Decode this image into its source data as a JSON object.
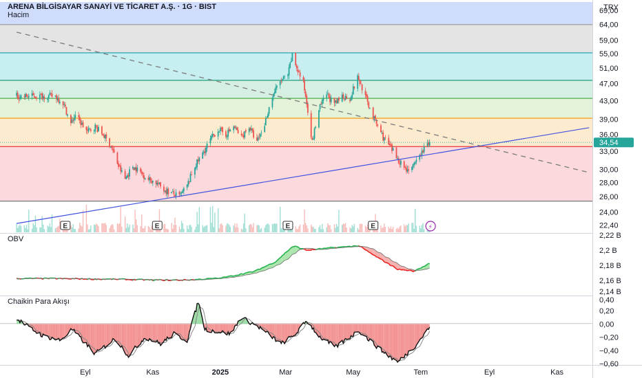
{
  "header": {
    "symbol": "ARENA BİLGİSAYAR SANAYİ VE TİCARET A.Ş. · 1G · BIST",
    "volume_label": "Hacim"
  },
  "currency": "TRY",
  "last_price": "34,54",
  "colors": {
    "up": "#26a69a",
    "down": "#ef5350",
    "trend_line": "#3f51e0",
    "dash_line": "#7a7a7a",
    "price_tag": "#26a69a",
    "obv_up": "#22b14c",
    "obv_down": "#e8231f",
    "chaikin": "#111111"
  },
  "x_axis": {
    "labels": [
      "Eyl",
      "Kas",
      "2025",
      "Mar",
      "May",
      "Tem",
      "Eyl",
      "Kas"
    ]
  },
  "panes": {
    "price": {
      "scale": "log",
      "ticks": [
        "69,00",
        "64,00",
        "59,00",
        "55,00",
        "51,00",
        "47,00",
        "43,00",
        "39,00",
        "36,00",
        "33,00",
        "30,00",
        "28,00",
        "26,00",
        "24,00",
        "22,40"
      ],
      "zones": [
        {
          "from": 64.0,
          "to": 72.0,
          "color": "#d0dcfb"
        },
        {
          "from": 55.2,
          "to": 64.0,
          "color": "#e4e4e4"
        },
        {
          "from": 47.8,
          "to": 55.2,
          "color": "#c7eef0"
        },
        {
          "from": 43.5,
          "to": 47.8,
          "color": "#d6efe3"
        },
        {
          "from": 39.2,
          "to": 43.5,
          "color": "#e3f2d9"
        },
        {
          "from": 33.8,
          "to": 39.2,
          "color": "#fdebd0"
        },
        {
          "from": 25.4,
          "to": 33.8,
          "color": "#fbd9dc"
        }
      ],
      "zone_lines": [
        {
          "value": 64.0,
          "color": "#9e9e9e"
        },
        {
          "value": 55.2,
          "color": "#26a6b0"
        },
        {
          "value": 47.8,
          "color": "#1f9e7a"
        },
        {
          "value": 43.5,
          "color": "#4caf50"
        },
        {
          "value": 39.2,
          "color": "#f39c12"
        },
        {
          "value": 33.8,
          "color": "#e53935"
        },
        {
          "value": 25.4,
          "color": "#777777"
        }
      ],
      "earnings_marker": "E",
      "dividend_marker": "⚡"
    },
    "obv": {
      "title": "OBV",
      "ticks": [
        "2,22 B",
        "2,2 B",
        "2,18 B",
        "2,16 B",
        "2,14 B"
      ]
    },
    "chaikin": {
      "title": "Chaikin Para Akışı",
      "ticks": [
        "0,40",
        "0,20",
        "0,00",
        "−0,20",
        "−0,40",
        "−0,60"
      ]
    }
  },
  "chart_data": [
    {
      "type": "candlestick",
      "title": "ARENA BİLGİSAYAR SANAYİ VE TİCARET A.Ş. · 1G · BIST",
      "y_scale": "log",
      "ylim": [
        21.5,
        72
      ],
      "anchors": [
        {
          "d": "2024-08-05",
          "c": 44.0
        },
        {
          "d": "2024-08-12",
          "c": 42.5
        },
        {
          "d": "2024-08-19",
          "c": 38.0
        },
        {
          "d": "2024-08-23",
          "c": 40.0
        },
        {
          "d": "2024-08-27",
          "c": 38.5
        },
        {
          "d": "2024-09-03",
          "c": 36.5
        },
        {
          "d": "2024-09-10",
          "c": 37.5
        },
        {
          "d": "2024-09-17",
          "c": 36.0
        },
        {
          "d": "2024-09-24",
          "c": 34.0
        },
        {
          "d": "2024-10-01",
          "c": 30.5
        },
        {
          "d": "2024-10-07",
          "c": 28.5
        },
        {
          "d": "2024-10-14",
          "c": 30.5
        },
        {
          "d": "2024-10-21",
          "c": 29.5
        },
        {
          "d": "2024-10-28",
          "c": 28.5
        },
        {
          "d": "2024-11-04",
          "c": 28.0
        },
        {
          "d": "2024-11-11",
          "c": 27.0
        },
        {
          "d": "2024-11-18",
          "c": 26.5
        },
        {
          "d": "2024-11-25",
          "c": 26.0
        },
        {
          "d": "2024-12-02",
          "c": 27.5
        },
        {
          "d": "2024-12-09",
          "c": 30.5
        },
        {
          "d": "2024-12-16",
          "c": 32.5
        },
        {
          "d": "2024-12-23",
          "c": 35.0
        },
        {
          "d": "2024-12-30",
          "c": 37.0
        },
        {
          "d": "2025-01-06",
          "c": 36.0
        },
        {
          "d": "2025-01-13",
          "c": 37.5
        },
        {
          "d": "2025-01-20",
          "c": 35.5
        },
        {
          "d": "2025-01-27",
          "c": 37.5
        },
        {
          "d": "2025-02-03",
          "c": 34.5
        },
        {
          "d": "2025-02-10",
          "c": 38.0
        },
        {
          "d": "2025-02-17",
          "c": 44.0
        },
        {
          "d": "2025-02-24",
          "c": 47.5
        },
        {
          "d": "2025-03-03",
          "c": 49.0
        },
        {
          "d": "2025-03-07",
          "c": 54.5
        },
        {
          "d": "2025-03-11",
          "c": 51.0
        },
        {
          "d": "2025-03-17",
          "c": 47.0
        },
        {
          "d": "2025-03-21",
          "c": 41.0
        },
        {
          "d": "2025-03-25",
          "c": 34.5
        },
        {
          "d": "2025-03-31",
          "c": 41.0
        },
        {
          "d": "2025-04-07",
          "c": 44.5
        },
        {
          "d": "2025-04-14",
          "c": 42.0
        },
        {
          "d": "2025-04-21",
          "c": 44.0
        },
        {
          "d": "2025-04-28",
          "c": 43.5
        },
        {
          "d": "2025-05-05",
          "c": 48.5
        },
        {
          "d": "2025-05-09",
          "c": 46.0
        },
        {
          "d": "2025-05-14",
          "c": 42.5
        },
        {
          "d": "2025-05-21",
          "c": 38.5
        },
        {
          "d": "2025-05-28",
          "c": 35.5
        },
        {
          "d": "2025-06-04",
          "c": 33.5
        },
        {
          "d": "2025-06-11",
          "c": 31.5
        },
        {
          "d": "2025-06-18",
          "c": 30.0
        },
        {
          "d": "2025-06-25",
          "c": 30.5
        },
        {
          "d": "2025-07-01",
          "c": 32.5
        },
        {
          "d": "2025-07-08",
          "c": 34.54
        }
      ],
      "trend_line": [
        {
          "d": "2024-07-01",
          "v": 22.6
        },
        {
          "d": "2025-11-30",
          "v": 37.3
        }
      ],
      "dashed_line": [
        {
          "d": "2024-07-01",
          "v": 61.5
        },
        {
          "d": "2025-11-30",
          "v": 29.5
        }
      ],
      "earnings_dates": [
        "2024-08-14",
        "2024-11-05",
        "2025-03-03",
        "2025-05-19"
      ],
      "dividend_date": "2025-07-08",
      "last_close": 34.54
    },
    {
      "type": "area",
      "title": "OBV",
      "ylim": [
        2.14,
        2.222
      ],
      "unit": "B",
      "anchors": [
        {
          "d": "2024-07-01",
          "v": 2.1625
        },
        {
          "d": "2024-08-01",
          "v": 2.1625
        },
        {
          "d": "2024-09-01",
          "v": 2.162
        },
        {
          "d": "2024-10-01",
          "v": 2.1615
        },
        {
          "d": "2024-11-01",
          "v": 2.1605
        },
        {
          "d": "2024-12-01",
          "v": 2.1605
        },
        {
          "d": "2025-01-01",
          "v": 2.163
        },
        {
          "d": "2025-02-01",
          "v": 2.172
        },
        {
          "d": "2025-02-20",
          "v": 2.185
        },
        {
          "d": "2025-03-08",
          "v": 2.206
        },
        {
          "d": "2025-03-20",
          "v": 2.2
        },
        {
          "d": "2025-04-10",
          "v": 2.203
        },
        {
          "d": "2025-05-06",
          "v": 2.206
        },
        {
          "d": "2025-05-20",
          "v": 2.193
        },
        {
          "d": "2025-06-10",
          "v": 2.175
        },
        {
          "d": "2025-06-25",
          "v": 2.172
        },
        {
          "d": "2025-07-09",
          "v": 2.183
        }
      ]
    },
    {
      "type": "area",
      "title": "Chaikin Para Akışı",
      "ylim": [
        -0.62,
        0.42
      ],
      "anchors": [
        {
          "d": "2024-07-01",
          "v": 0.08
        },
        {
          "d": "2024-07-12",
          "v": -0.05
        },
        {
          "d": "2024-07-25",
          "v": -0.18
        },
        {
          "d": "2024-08-10",
          "v": -0.25
        },
        {
          "d": "2024-08-20",
          "v": -0.08
        },
        {
          "d": "2024-09-10",
          "v": -0.45
        },
        {
          "d": "2024-09-28",
          "v": -0.22
        },
        {
          "d": "2024-10-10",
          "v": -0.48
        },
        {
          "d": "2024-10-25",
          "v": -0.2
        },
        {
          "d": "2024-11-08",
          "v": -0.3
        },
        {
          "d": "2024-11-20",
          "v": -0.15
        },
        {
          "d": "2024-12-02",
          "v": -0.25
        },
        {
          "d": "2024-12-12",
          "v": 0.34
        },
        {
          "d": "2024-12-18",
          "v": -0.08
        },
        {
          "d": "2025-01-10",
          "v": -0.15
        },
        {
          "d": "2025-01-20",
          "v": 0.1
        },
        {
          "d": "2025-02-05",
          "v": -0.05
        },
        {
          "d": "2025-02-25",
          "v": -0.3
        },
        {
          "d": "2025-03-10",
          "v": -0.15
        },
        {
          "d": "2025-03-20",
          "v": 0.05
        },
        {
          "d": "2025-04-01",
          "v": -0.2
        },
        {
          "d": "2025-04-15",
          "v": -0.35
        },
        {
          "d": "2025-05-06",
          "v": -0.1
        },
        {
          "d": "2025-05-25",
          "v": -0.38
        },
        {
          "d": "2025-06-10",
          "v": -0.58
        },
        {
          "d": "2025-06-25",
          "v": -0.35
        },
        {
          "d": "2025-07-09",
          "v": -0.05
        }
      ]
    }
  ]
}
